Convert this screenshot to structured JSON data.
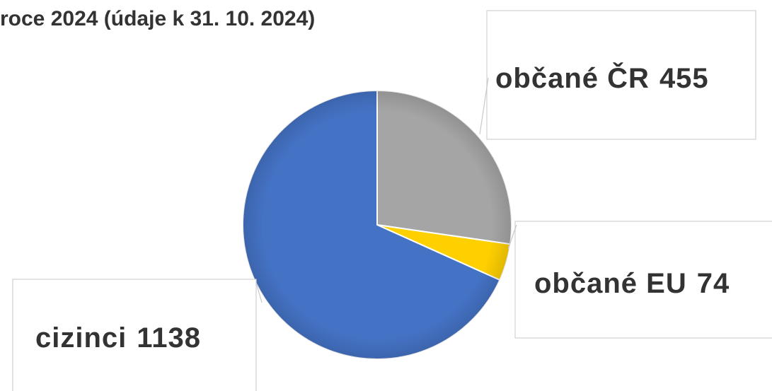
{
  "chart_data": {
    "type": "pie",
    "title": "roce 2024 (údaje k 31. 10. 2024)",
    "categories": [
      "občané ČR",
      "občané EU",
      "cizinci"
    ],
    "values": [
      455,
      74,
      1138
    ],
    "colors": [
      "#a5a5a5",
      "#ffd000",
      "#4472c4"
    ]
  }
}
